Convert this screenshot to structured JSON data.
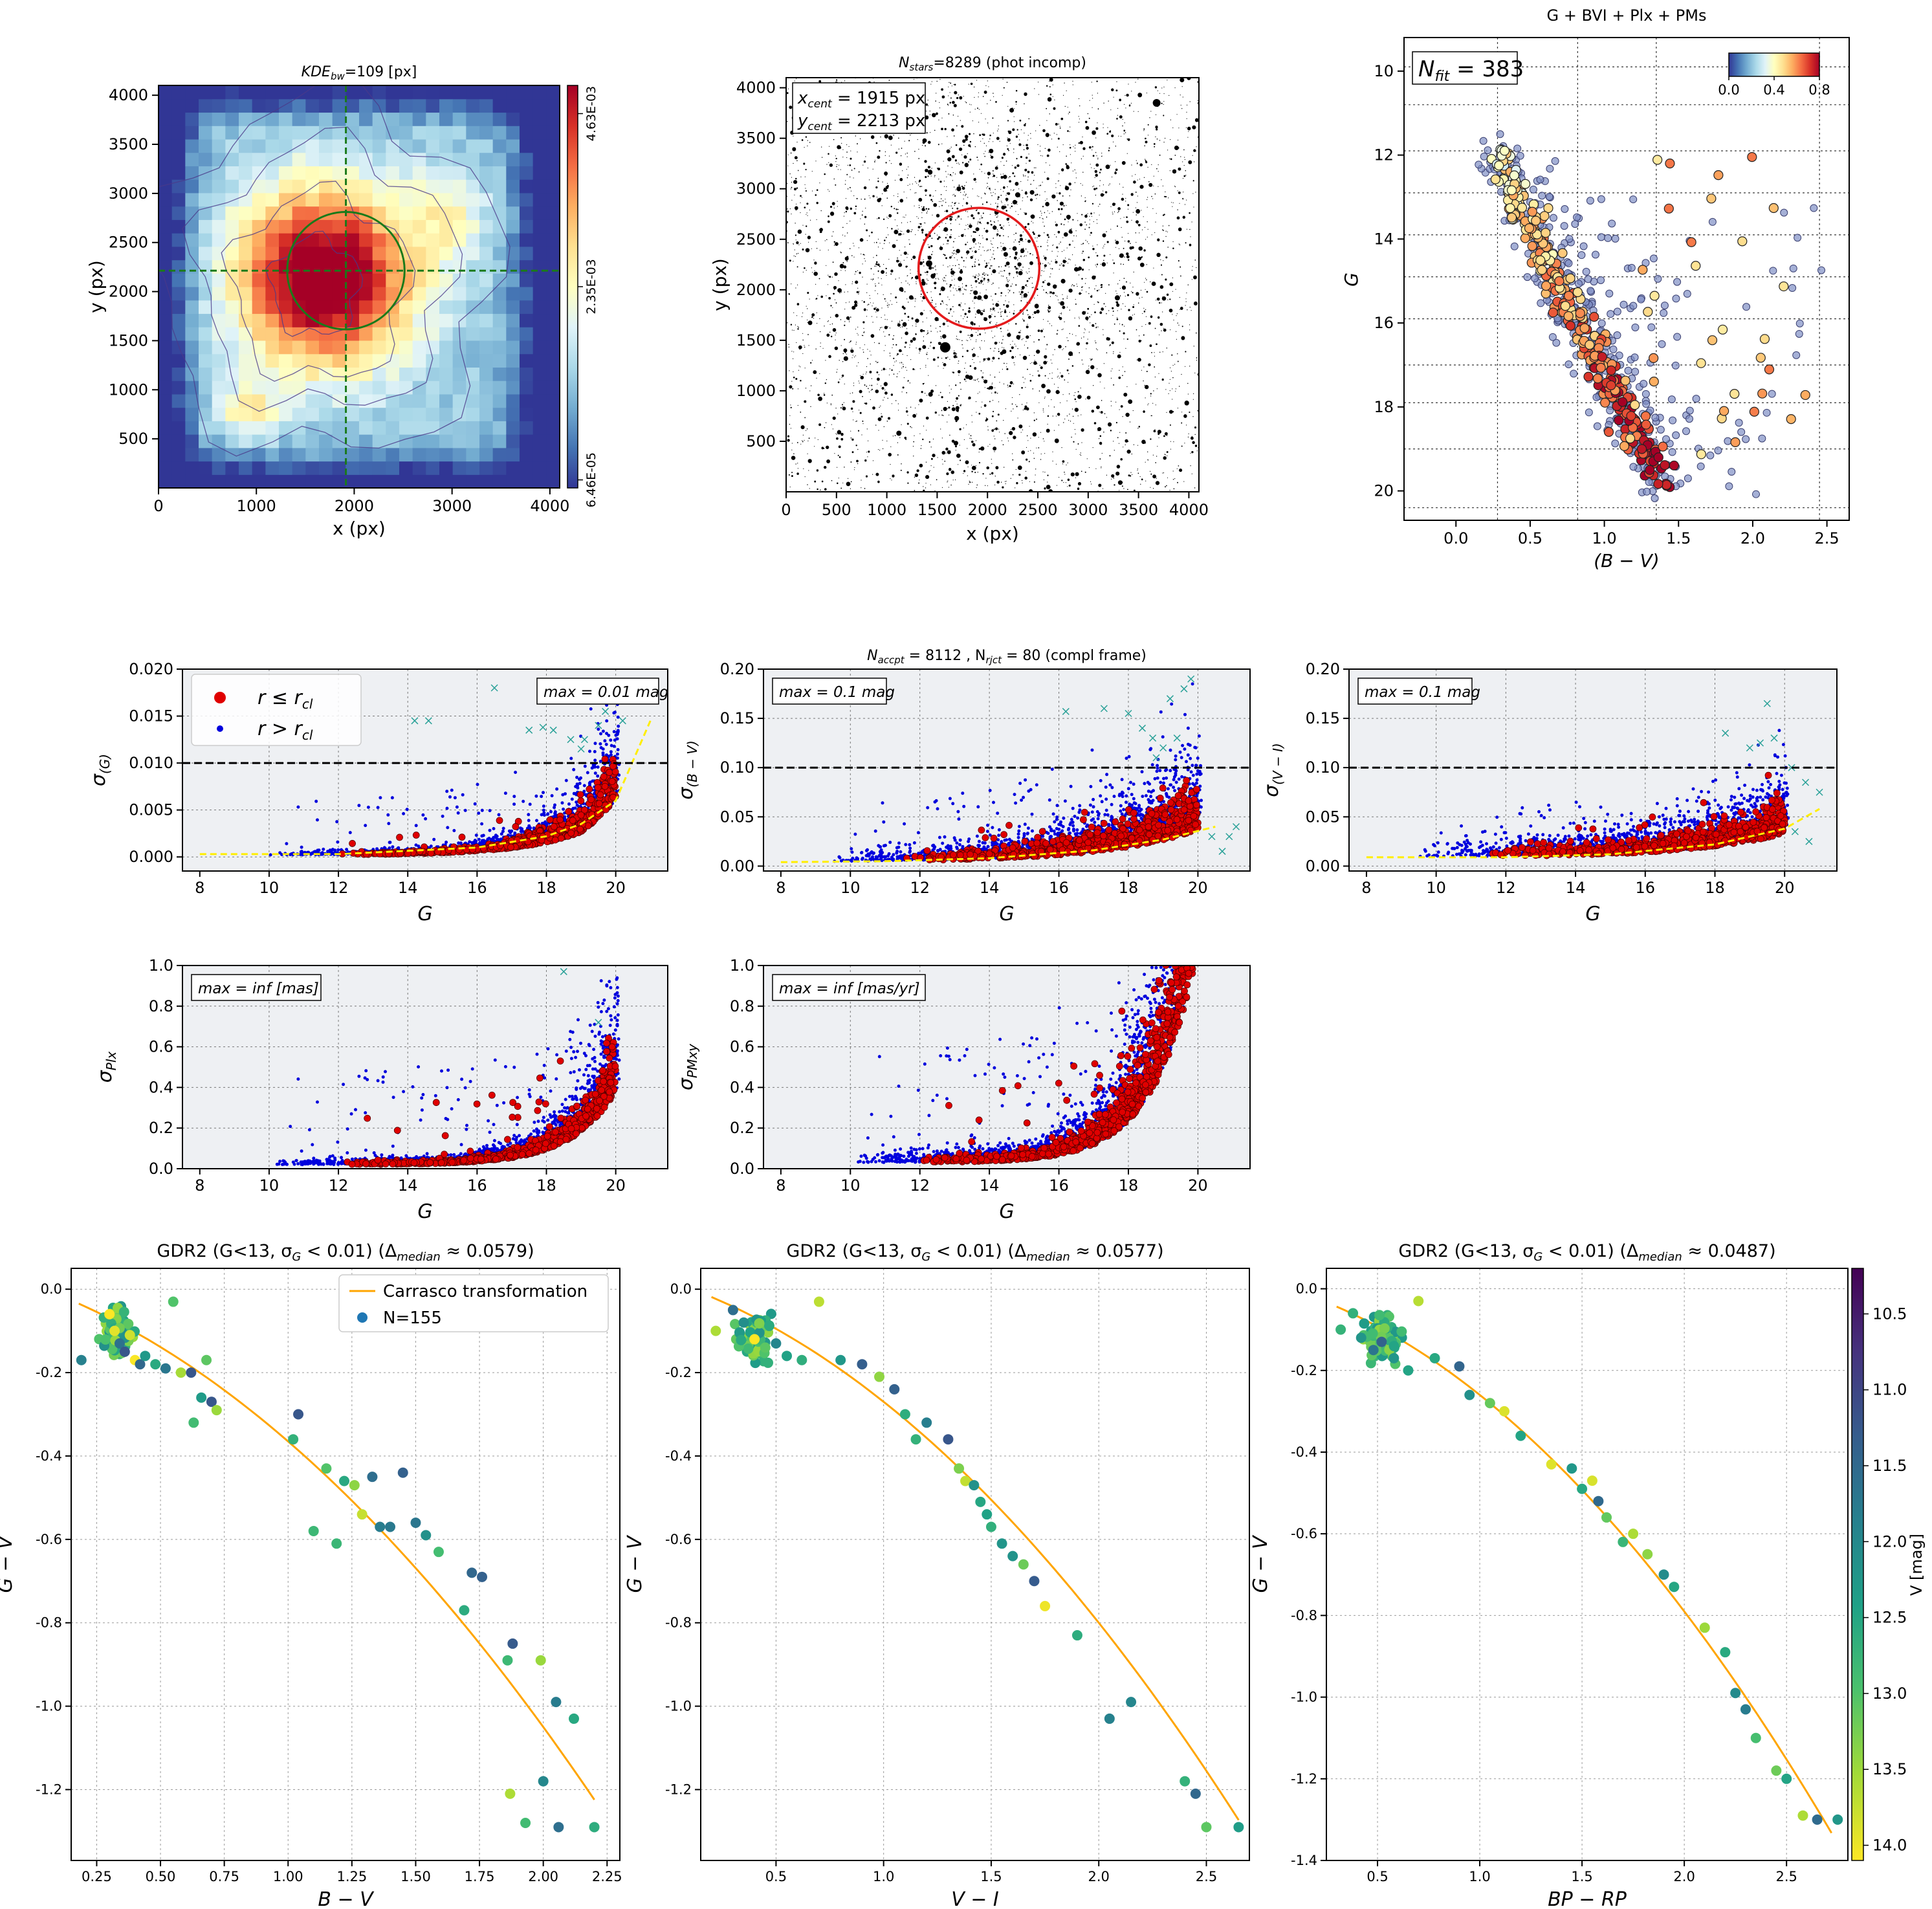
{
  "figure": {
    "panels": {
      "kde": {
        "title": "KDE_bw=109 [px]",
        "title_main": "KDE",
        "title_sub": "bw",
        "title_rest": "=109 [px]",
        "xlabel": "x (px)",
        "ylabel": "y (px)",
        "xticks": [
          "0",
          "1000",
          "2000",
          "3000",
          "4000"
        ],
        "yticks": [
          "500",
          "1000",
          "1500",
          "2000",
          "2500",
          "3000",
          "3500",
          "4000"
        ],
        "colorbar_ticks": [
          "4.63E-03",
          "2.35E-03",
          "6.46E-05"
        ],
        "colormap": [
          "#313695",
          "#4575b4",
          "#74add1",
          "#abd9e9",
          "#e0f3f8",
          "#ffffbf",
          "#fee090",
          "#fdae61",
          "#f46d43",
          "#d73027",
          "#a50026"
        ],
        "center_marker_color": "#1a7a1a"
      },
      "stars": {
        "title": "N_stars=8289 (phot incomp)",
        "title_main": "N",
        "title_sub": "stars",
        "title_rest": "=8289 (phot incomp)",
        "xlabel": "x (px)",
        "ylabel": "y (px)",
        "xticks": [
          "0",
          "500",
          "1000",
          "1500",
          "2000",
          "2500",
          "3000",
          "3500",
          "4000"
        ],
        "yticks": [
          "500",
          "1000",
          "1500",
          "2000",
          "2500",
          "3000",
          "3500",
          "4000"
        ],
        "xcent_label": "x_cent = 1915 px",
        "xcent_main": "x",
        "xcent_sub": "cent",
        "xcent_rest": " = 1915 px",
        "ycent_main": "y",
        "ycent_sub": "cent",
        "ycent_rest": " = 2213 px",
        "circle_color": "#e41a1c"
      },
      "cmd": {
        "title": "G + BVI + Plx + PMs",
        "xlabel": "(B − V)",
        "ylabel": "G",
        "nfit_main": "N",
        "nfit_sub": "fit",
        "nfit_rest": " = 383",
        "xticks": [
          "0.0",
          "0.5",
          "1.0",
          "1.5",
          "2.0",
          "2.5"
        ],
        "yticks": [
          "10",
          "12",
          "14",
          "16",
          "18",
          "20"
        ],
        "colorbar_ticks": [
          "0.0",
          "0.4",
          "0.8"
        ]
      },
      "sigG": {
        "ylabel_main": "σ",
        "ylabel_sub": "(G)",
        "xlabel": "G",
        "max_label": "max = 0.01 mag",
        "xticks": [
          "8",
          "10",
          "12",
          "14",
          "16",
          "18",
          "20"
        ],
        "yticks": [
          "0.000",
          "0.005",
          "0.010",
          "0.015",
          "0.020"
        ],
        "legend": {
          "in": "r ≤ r_cl",
          "out": "r > r_cl",
          "in_main": "r ≤ r",
          "in_sub": "cl",
          "out_main": "r > r",
          "out_sub": "cl"
        }
      },
      "sigBV": {
        "title_main1": "N",
        "title_sub1": "accpt",
        "title_rest1": " = 8112 , N",
        "title_sub2": "rjct",
        "title_rest2": " = 80 (compl frame)",
        "ylabel_main": "σ",
        "ylabel_sub": "(B − V)",
        "xlabel": "G",
        "max_label": "max = 0.1 mag",
        "xticks": [
          "8",
          "10",
          "12",
          "14",
          "16",
          "18",
          "20"
        ],
        "yticks": [
          "0.00",
          "0.05",
          "0.10",
          "0.15",
          "0.20"
        ]
      },
      "sigVI": {
        "ylabel_main": "σ",
        "ylabel_sub": "(V − I)",
        "xlabel": "G",
        "max_label": "max = 0.1 mag",
        "xticks": [
          "8",
          "10",
          "12",
          "14",
          "16",
          "18",
          "20"
        ],
        "yticks": [
          "0.00",
          "0.05",
          "0.10",
          "0.15",
          "0.20"
        ]
      },
      "sigPlx": {
        "ylabel_main": "σ",
        "ylabel_sub": "Plx",
        "xlabel": "G",
        "max_label": "max = inf [mas]",
        "xticks": [
          "8",
          "10",
          "12",
          "14",
          "16",
          "18",
          "20"
        ],
        "yticks": [
          "0.0",
          "0.2",
          "0.4",
          "0.6",
          "0.8",
          "1.0"
        ]
      },
      "sigPM": {
        "ylabel_main": "σ",
        "ylabel_sub": "PMxy",
        "xlabel": "G",
        "max_label": "max = inf [mas/yr]",
        "xticks": [
          "8",
          "10",
          "12",
          "14",
          "16",
          "18",
          "20"
        ],
        "yticks": [
          "0.0",
          "0.2",
          "0.4",
          "0.6",
          "0.8",
          "1.0"
        ]
      },
      "gdr2_bv": {
        "title": "GDR2 (G<13, σ_G < 0.01) (Δ_median ≈ 0.0579)",
        "title_a": "GDR2 (G<13, σ",
        "title_b": "G",
        "title_c": " < 0.01) (Δ",
        "title_d": "median",
        "title_e": " ≈ 0.0579)",
        "xlabel": "B − V",
        "ylabel": "G − V",
        "legend_line": "Carrasco transformation",
        "legend_points": "N=155",
        "xticks": [
          "0.25",
          "0.50",
          "0.75",
          "1.00",
          "1.25",
          "1.50",
          "1.75",
          "2.00",
          "2.25"
        ],
        "yticks": [
          "0.0",
          "-0.2",
          "-0.4",
          "-0.6",
          "-0.8",
          "-1.0",
          "-1.2"
        ]
      },
      "gdr2_vi": {
        "title_a": "GDR2 (G<13, σ",
        "title_b": "G",
        "title_c": " < 0.01) (Δ",
        "title_d": "median",
        "title_e": " ≈ 0.0577)",
        "xlabel": "V − I",
        "ylabel": "G − V",
        "xticks": [
          "0.5",
          "1.0",
          "1.5",
          "2.0",
          "2.5"
        ],
        "yticks": [
          "0.0",
          "-0.2",
          "-0.4",
          "-0.6",
          "-0.8",
          "-1.0",
          "-1.2"
        ]
      },
      "gdr2_bprp": {
        "title_a": "GDR2 (G<13, σ",
        "title_b": "G",
        "title_c": " < 0.01) (Δ",
        "title_d": "median",
        "title_e": " ≈ 0.0487)",
        "xlabel": "BP − RP",
        "ylabel": "G − V",
        "colorbar_label": "V [mag]",
        "colorbar_ticks": [
          "10.5",
          "11.0",
          "11.5",
          "12.0",
          "12.5",
          "13.0",
          "13.5",
          "14.0"
        ],
        "xticks": [
          "0.5",
          "1.0",
          "1.5",
          "2.0",
          "2.5"
        ],
        "yticks": [
          "0.0",
          "-0.2",
          "-0.4",
          "-0.6",
          "-0.8",
          "-1.0",
          "-1.2",
          "-1.4"
        ]
      }
    }
  },
  "chart_data": [
    {
      "id": "kde",
      "type": "heatmap",
      "xlim": [
        0,
        4100
      ],
      "ylim": [
        0,
        4100
      ],
      "center": [
        1915,
        2213
      ],
      "cluster_radius": 600,
      "grid": "30x30 density grid, peak near (1650, 2050)"
    },
    {
      "id": "stars",
      "type": "scatter",
      "xlim": [
        0,
        4100
      ],
      "ylim": [
        0,
        4100
      ],
      "n_stars": 8289,
      "center": [
        1915,
        2213
      ],
      "cluster_radius": 600
    },
    {
      "id": "cmd",
      "type": "scatter",
      "xlim": [
        -0.35,
        2.65
      ],
      "ylim": [
        20.7,
        9.2
      ],
      "n_fit": 383,
      "colorbar_range": [
        0.0,
        0.8
      ]
    },
    {
      "id": "sigG",
      "type": "scatter",
      "xlim": [
        7.5,
        21.5
      ],
      "ylim": [
        -0.0015,
        0.02
      ],
      "max_line": 0.01,
      "fit_curve": [
        [
          8,
          0.0003
        ],
        [
          12,
          0.0003
        ],
        [
          16,
          0.001
        ],
        [
          18,
          0.0022
        ],
        [
          19,
          0.0035
        ],
        [
          20,
          0.006
        ],
        [
          21,
          0.0145
        ]
      ]
    },
    {
      "id": "sigBV",
      "type": "scatter",
      "xlim": [
        7.5,
        21.5
      ],
      "ylim": [
        -0.005,
        0.2
      ],
      "max_line": 0.1,
      "fit_curve": [
        [
          8,
          0.004
        ],
        [
          11,
          0.005
        ],
        [
          14,
          0.008
        ],
        [
          17,
          0.016
        ],
        [
          19,
          0.027
        ],
        [
          20.5,
          0.04
        ]
      ]
    },
    {
      "id": "sigVI",
      "type": "scatter",
      "xlim": [
        7.5,
        21.5
      ],
      "ylim": [
        -0.005,
        0.2
      ],
      "max_line": 0.1,
      "fit_curve": [
        [
          8,
          0.009
        ],
        [
          12,
          0.009
        ],
        [
          15,
          0.012
        ],
        [
          18,
          0.022
        ],
        [
          20,
          0.038
        ],
        [
          21,
          0.058
        ]
      ]
    },
    {
      "id": "sigPlx",
      "type": "scatter",
      "xlim": [
        7.5,
        21.5
      ],
      "ylim": [
        0,
        1.0
      ]
    },
    {
      "id": "sigPM",
      "type": "scatter",
      "xlim": [
        7.5,
        21.5
      ],
      "ylim": [
        0,
        1.0
      ]
    },
    {
      "id": "gdr2_bv",
      "type": "scatter",
      "xlim": [
        0.15,
        2.3
      ],
      "ylim": [
        -1.37,
        0.05
      ],
      "curve": "Carrasco transformation",
      "points": [
        [
          0.19,
          -0.17
        ],
        [
          0.3,
          -0.06
        ],
        [
          0.32,
          -0.1
        ],
        [
          0.34,
          -0.13
        ],
        [
          0.36,
          -0.15
        ],
        [
          0.38,
          -0.11
        ],
        [
          0.4,
          -0.17
        ],
        [
          0.42,
          -0.18
        ],
        [
          0.44,
          -0.16
        ],
        [
          0.48,
          -0.18
        ],
        [
          0.52,
          -0.19
        ],
        [
          0.55,
          -0.03
        ],
        [
          0.58,
          -0.2
        ],
        [
          0.62,
          -0.2
        ],
        [
          0.63,
          -0.32
        ],
        [
          0.66,
          -0.26
        ],
        [
          0.7,
          -0.27
        ],
        [
          0.72,
          -0.29
        ],
        [
          0.68,
          -0.17
        ],
        [
          1.02,
          -0.36
        ],
        [
          1.04,
          -0.3
        ],
        [
          1.1,
          -0.58
        ],
        [
          1.15,
          -0.43
        ],
        [
          1.19,
          -0.61
        ],
        [
          1.22,
          -0.46
        ],
        [
          1.26,
          -0.47
        ],
        [
          1.29,
          -0.54
        ],
        [
          1.33,
          -0.45
        ],
        [
          1.36,
          -0.57
        ],
        [
          1.4,
          -0.57
        ],
        [
          1.45,
          -0.44
        ],
        [
          1.5,
          -0.56
        ],
        [
          1.54,
          -0.59
        ],
        [
          1.59,
          -0.63
        ],
        [
          1.69,
          -0.77
        ],
        [
          1.72,
          -0.68
        ],
        [
          1.76,
          -0.69
        ],
        [
          1.86,
          -0.89
        ],
        [
          1.88,
          -0.85
        ],
        [
          1.87,
          -1.21
        ],
        [
          1.93,
          -1.28
        ],
        [
          1.99,
          -0.89
        ],
        [
          2.0,
          -1.18
        ],
        [
          2.05,
          -0.99
        ],
        [
          2.06,
          -1.29
        ],
        [
          2.12,
          -1.03
        ],
        [
          2.2,
          -1.29
        ]
      ],
      "n": 155,
      "median_delta": 0.0579
    },
    {
      "id": "gdr2_vi",
      "type": "scatter",
      "xlim": [
        0.15,
        2.7
      ],
      "ylim": [
        -1.37,
        0.05
      ],
      "curve": "Carrasco transformation",
      "points": [
        [
          0.22,
          -0.1
        ],
        [
          0.3,
          -0.05
        ],
        [
          0.35,
          -0.08
        ],
        [
          0.4,
          -0.12
        ],
        [
          0.45,
          -0.14
        ],
        [
          0.5,
          -0.13
        ],
        [
          0.55,
          -0.16
        ],
        [
          0.62,
          -0.17
        ],
        [
          0.7,
          -0.03
        ],
        [
          0.8,
          -0.17
        ],
        [
          0.9,
          -0.18
        ],
        [
          0.98,
          -0.21
        ],
        [
          1.05,
          -0.24
        ],
        [
          1.1,
          -0.3
        ],
        [
          1.15,
          -0.36
        ],
        [
          1.2,
          -0.32
        ],
        [
          1.3,
          -0.36
        ],
        [
          1.35,
          -0.43
        ],
        [
          1.38,
          -0.46
        ],
        [
          1.42,
          -0.47
        ],
        [
          1.45,
          -0.51
        ],
        [
          1.48,
          -0.54
        ],
        [
          1.5,
          -0.57
        ],
        [
          1.55,
          -0.61
        ],
        [
          1.6,
          -0.64
        ],
        [
          1.65,
          -0.66
        ],
        [
          1.7,
          -0.7
        ],
        [
          1.75,
          -0.76
        ],
        [
          1.9,
          -0.83
        ],
        [
          2.05,
          -1.03
        ],
        [
          2.15,
          -0.99
        ],
        [
          2.4,
          -1.18
        ],
        [
          2.45,
          -1.21
        ],
        [
          2.5,
          -1.29
        ],
        [
          2.65,
          -1.29
        ]
      ],
      "n": 155,
      "median_delta": 0.0577
    },
    {
      "id": "gdr2_bprp",
      "type": "scatter",
      "xlim": [
        0.25,
        2.8
      ],
      "ylim": [
        -1.4,
        0.05
      ],
      "curve": "Carrasco transformation",
      "colorbar_range": [
        10.2,
        14.1
      ],
      "points": [
        [
          0.32,
          -0.1
        ],
        [
          0.38,
          -0.06
        ],
        [
          0.42,
          -0.12
        ],
        [
          0.48,
          -0.15
        ],
        [
          0.52,
          -0.13
        ],
        [
          0.58,
          -0.17
        ],
        [
          0.65,
          -0.2
        ],
        [
          0.7,
          -0.03
        ],
        [
          0.78,
          -0.17
        ],
        [
          0.9,
          -0.19
        ],
        [
          0.95,
          -0.26
        ],
        [
          1.05,
          -0.28
        ],
        [
          1.12,
          -0.3
        ],
        [
          1.2,
          -0.36
        ],
        [
          1.35,
          -0.43
        ],
        [
          1.45,
          -0.44
        ],
        [
          1.5,
          -0.49
        ],
        [
          1.55,
          -0.47
        ],
        [
          1.58,
          -0.52
        ],
        [
          1.62,
          -0.56
        ],
        [
          1.7,
          -0.62
        ],
        [
          1.75,
          -0.6
        ],
        [
          1.82,
          -0.65
        ],
        [
          1.9,
          -0.7
        ],
        [
          1.95,
          -0.73
        ],
        [
          2.1,
          -0.83
        ],
        [
          2.2,
          -0.89
        ],
        [
          2.25,
          -0.99
        ],
        [
          2.3,
          -1.03
        ],
        [
          2.35,
          -1.1
        ],
        [
          2.45,
          -1.18
        ],
        [
          2.5,
          -1.2
        ],
        [
          2.58,
          -1.29
        ],
        [
          2.65,
          -1.3
        ],
        [
          2.75,
          -1.3
        ]
      ],
      "n": 155,
      "median_delta": 0.0487
    }
  ]
}
